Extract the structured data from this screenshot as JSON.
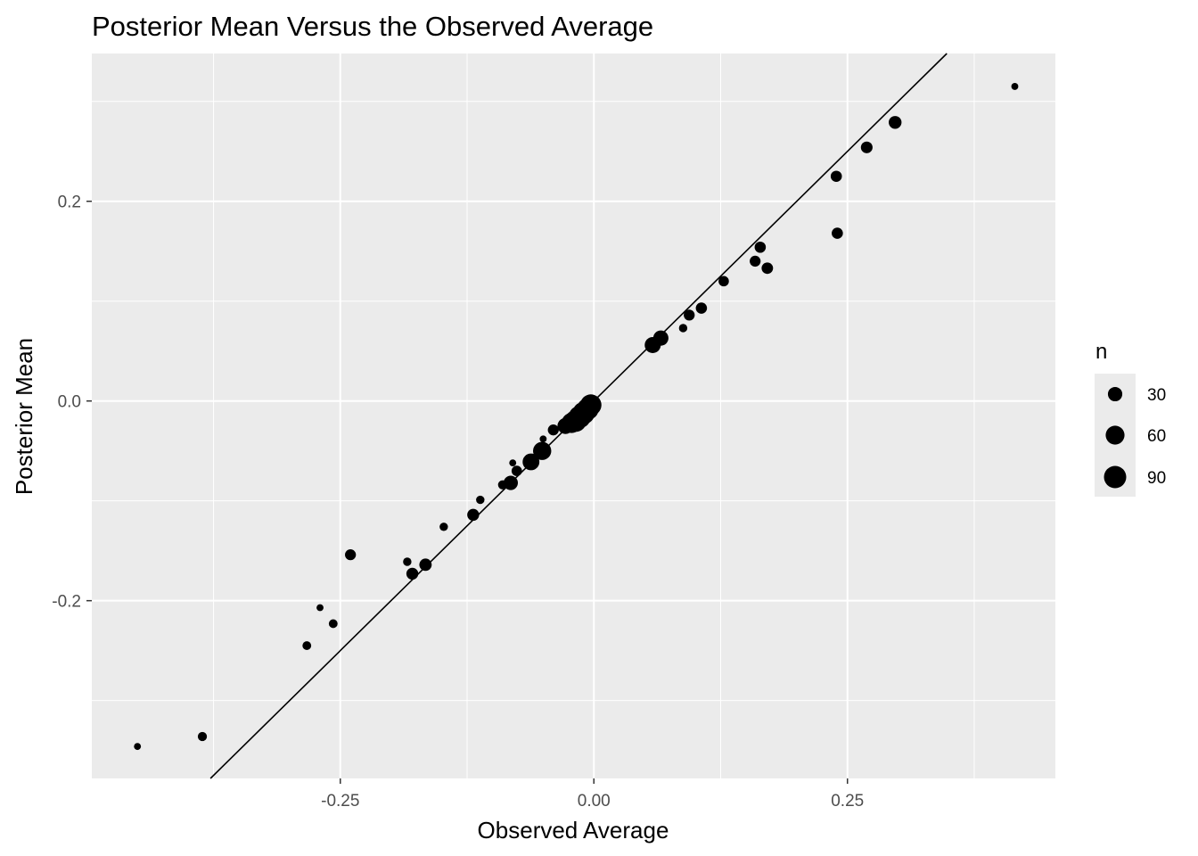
{
  "chart_data": {
    "type": "scatter",
    "title": "Posterior Mean Versus the Observed Average",
    "xlabel": "Observed Average",
    "ylabel": "Posterior Mean",
    "xlim": [
      -0.495,
      0.455
    ],
    "ylim": [
      -0.378,
      0.348
    ],
    "x_ticks": [
      -0.25,
      0.0,
      0.25
    ],
    "x_tick_labels": [
      "-0.25",
      "0.00",
      "0.25"
    ],
    "y_ticks": [
      -0.2,
      0.0,
      0.2
    ],
    "y_tick_labels": [
      "-0.2",
      "0.0",
      "0.2"
    ],
    "grid": true,
    "panel_background": "#ebebeb",
    "grid_color": "#ffffff",
    "point_color": "#000000",
    "reference_line": {
      "type": "identity",
      "slope": 1,
      "intercept": 0,
      "color": "#000000"
    },
    "legend": {
      "title": "n",
      "position": "right",
      "entries": [
        {
          "label": "30",
          "n": 30
        },
        {
          "label": "60",
          "n": 60
        },
        {
          "label": "90",
          "n": 90
        }
      ]
    },
    "points": [
      {
        "x": -0.45,
        "y": -0.346,
        "n": 3
      },
      {
        "x": -0.386,
        "y": -0.336,
        "n": 8
      },
      {
        "x": -0.283,
        "y": -0.245,
        "n": 7
      },
      {
        "x": -0.27,
        "y": -0.207,
        "n": 3
      },
      {
        "x": -0.257,
        "y": -0.223,
        "n": 7
      },
      {
        "x": -0.24,
        "y": -0.154,
        "n": 14
      },
      {
        "x": -0.184,
        "y": -0.161,
        "n": 6
      },
      {
        "x": -0.179,
        "y": -0.173,
        "n": 18
      },
      {
        "x": -0.166,
        "y": -0.164,
        "n": 20
      },
      {
        "x": -0.148,
        "y": -0.126,
        "n": 6
      },
      {
        "x": -0.119,
        "y": -0.114,
        "n": 18
      },
      {
        "x": -0.112,
        "y": -0.099,
        "n": 6
      },
      {
        "x": -0.09,
        "y": -0.084,
        "n": 8
      },
      {
        "x": -0.082,
        "y": -0.082,
        "n": 30
      },
      {
        "x": -0.08,
        "y": -0.062,
        "n": 3
      },
      {
        "x": -0.076,
        "y": -0.07,
        "n": 12
      },
      {
        "x": -0.062,
        "y": -0.061,
        "n": 45
      },
      {
        "x": -0.051,
        "y": -0.05,
        "n": 55
      },
      {
        "x": -0.05,
        "y": -0.038,
        "n": 3
      },
      {
        "x": -0.04,
        "y": -0.029,
        "n": 14
      },
      {
        "x": -0.028,
        "y": -0.025,
        "n": 40
      },
      {
        "x": -0.022,
        "y": -0.022,
        "n": 70
      },
      {
        "x": -0.018,
        "y": -0.02,
        "n": 85
      },
      {
        "x": -0.014,
        "y": -0.016,
        "n": 90
      },
      {
        "x": -0.01,
        "y": -0.012,
        "n": 90
      },
      {
        "x": -0.006,
        "y": -0.008,
        "n": 85
      },
      {
        "x": -0.003,
        "y": -0.004,
        "n": 80
      },
      {
        "x": 0.058,
        "y": 0.056,
        "n": 40
      },
      {
        "x": 0.066,
        "y": 0.063,
        "n": 35
      },
      {
        "x": 0.088,
        "y": 0.073,
        "n": 6
      },
      {
        "x": 0.094,
        "y": 0.086,
        "n": 14
      },
      {
        "x": 0.106,
        "y": 0.093,
        "n": 15
      },
      {
        "x": 0.128,
        "y": 0.12,
        "n": 12
      },
      {
        "x": 0.159,
        "y": 0.14,
        "n": 14
      },
      {
        "x": 0.164,
        "y": 0.154,
        "n": 15
      },
      {
        "x": 0.171,
        "y": 0.133,
        "n": 16
      },
      {
        "x": 0.239,
        "y": 0.225,
        "n": 15
      },
      {
        "x": 0.24,
        "y": 0.168,
        "n": 15
      },
      {
        "x": 0.269,
        "y": 0.254,
        "n": 17
      },
      {
        "x": 0.297,
        "y": 0.279,
        "n": 22
      },
      {
        "x": 0.415,
        "y": 0.315,
        "n": 3
      }
    ]
  }
}
